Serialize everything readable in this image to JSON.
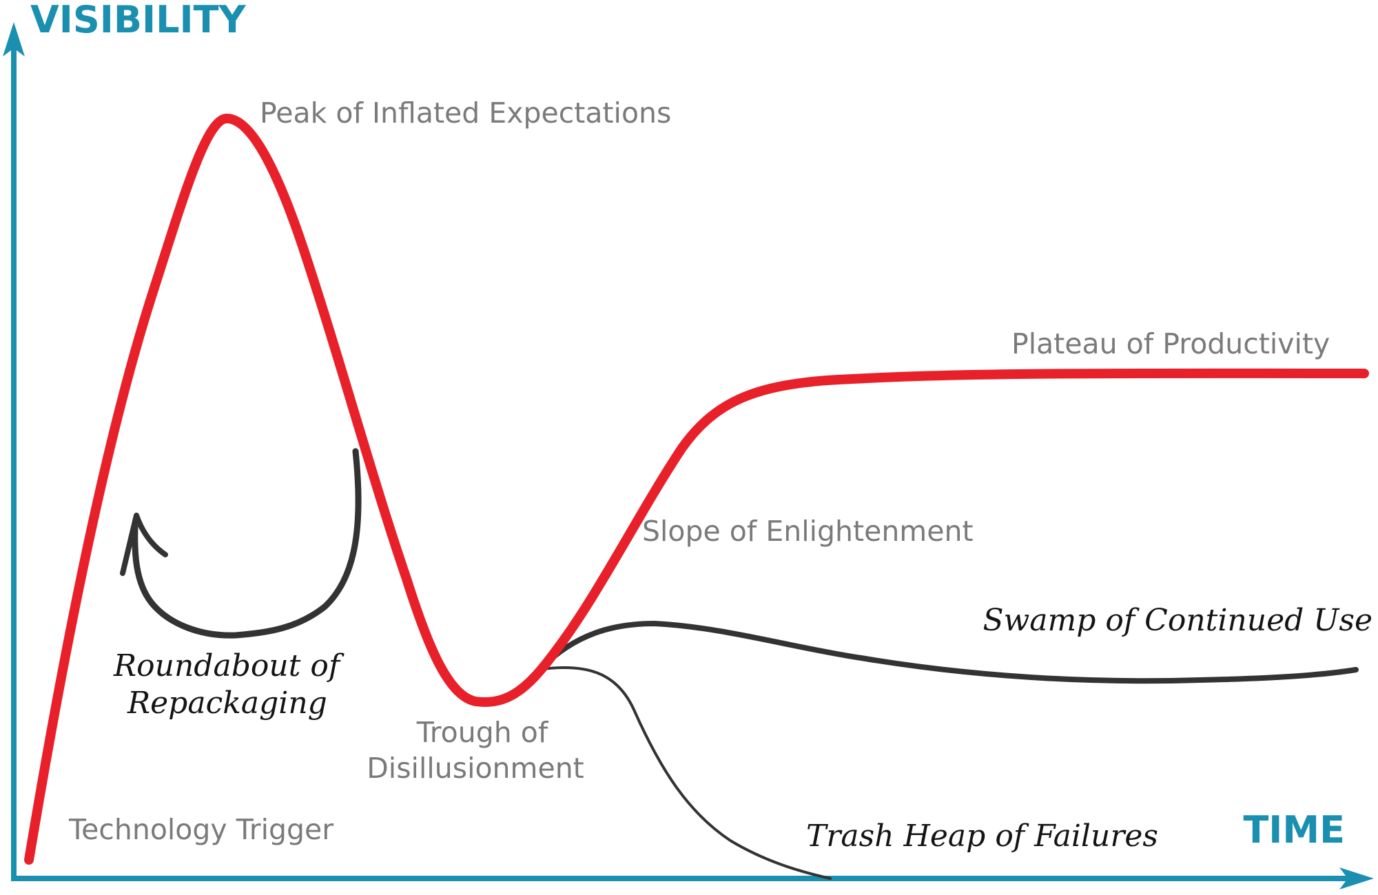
{
  "axes": {
    "y_label": "VISIBILITY",
    "x_label": "TIME",
    "color": "#1a8fb0"
  },
  "phases": {
    "technology_trigger": "Technology Trigger",
    "peak": "Peak of Inflated Expectations",
    "trough_line1": "Trough of",
    "trough_line2": "Disillusionment",
    "slope": "Slope of Enlightenment",
    "plateau": "Plateau of Productivity"
  },
  "variants": {
    "roundabout_line1": "Roundabout of",
    "roundabout_line2": "Repackaging",
    "swamp": "Swamp of Continued Use",
    "trash": "Trash Heap of Failures"
  },
  "colors": {
    "main_curve": "#e8202a",
    "variant_curves": "#333333",
    "phase_text": "#7a7a7a",
    "variant_text": "#141414"
  }
}
